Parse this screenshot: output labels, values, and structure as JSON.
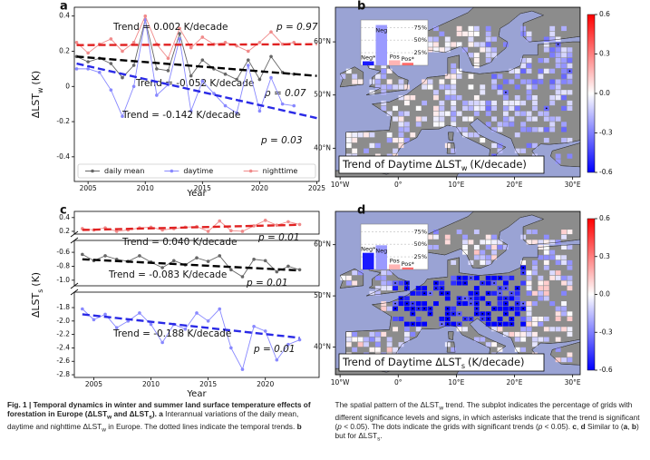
{
  "chart_data": [
    {
      "type": "line",
      "panel_label": "a",
      "xlabel": "Year",
      "ylabel": {
        "main": "ΔLST",
        "sub": "w",
        "unit": "(K)"
      },
      "xlim": [
        2003.8,
        2025.2
      ],
      "xticks": [
        2005,
        2010,
        2015,
        2020,
        2025
      ],
      "ylim": [
        -0.54,
        0.45
      ],
      "yticks": [
        -0.4,
        -0.2,
        0,
        0.2,
        0.4
      ],
      "legend": "lower center",
      "x": [
        2004,
        2005,
        2006,
        2007,
        2008,
        2009,
        2010,
        2011,
        2012,
        2013,
        2014,
        2015,
        2016,
        2017,
        2018,
        2019,
        2020,
        2021,
        2022,
        2023
      ],
      "series": [
        {
          "name": "daily mean",
          "color": "#666666",
          "trend_color": "#000000",
          "values": [
            0.17,
            0.14,
            0.16,
            0.13,
            0.05,
            0.12,
            0.38,
            0.1,
            0.09,
            0.3,
            0.06,
            0.15,
            0.1,
            0.07,
            0.04,
            0.15,
            0.04,
            0.17,
            0.08,
            0.07
          ],
          "trend": {
            "x": [
              2004,
              2025
            ],
            "values": [
              0.17,
              0.06
            ]
          },
          "trend_label": "Trend = -0.052 K/decade",
          "p_label": "p = 0.07"
        },
        {
          "name": "daytime",
          "color": "#8888ff",
          "trend_color": "#2a2ae6",
          "values": [
            0.1,
            0.1,
            0.08,
            -0.02,
            -0.17,
            0,
            0.38,
            -0.05,
            0.01,
            0.27,
            -0.14,
            0.03,
            -0.04,
            -0.11,
            -0.15,
            0.12,
            -0.14,
            0.05,
            -0.1,
            -0.11
          ],
          "trend": {
            "x": [
              2004,
              2025
            ],
            "values": [
              0.13,
              -0.18
            ]
          },
          "trend_label": "Trend = -0.142 K/decade",
          "p_label": "p = 0.03"
        },
        {
          "name": "nighttime",
          "color": "#f08a8a",
          "trend_color": "#e02222",
          "values": [
            0.25,
            0.19,
            0.24,
            0.27,
            0.2,
            0.25,
            0.4,
            0.24,
            0.16,
            0.33,
            0.22,
            0.28,
            0.24,
            0.25,
            0.23,
            0.2,
            0.25,
            0.31,
            0.24,
            0.25
          ],
          "trend": {
            "x": [
              2004,
              2025
            ],
            "values": [
              0.235,
              0.24
            ]
          },
          "trend_label": "Trend = 0.002 K/decade",
          "p_label": "p = 0.97"
        }
      ]
    },
    {
      "type": "map",
      "panel_label": "b",
      "xlim": [
        -10.8,
        31.3
      ],
      "ylim": [
        34.6,
        66.5
      ],
      "xticks": [
        {
          "value": -10,
          "label": "10°W"
        },
        {
          "value": 0,
          "label": "0°"
        },
        {
          "value": 10,
          "label": "10°E"
        },
        {
          "value": 20,
          "label": "20°E"
        },
        {
          "value": 30,
          "label": "30°E"
        }
      ],
      "yticks": [
        {
          "value": 40,
          "label": "40°N"
        },
        {
          "value": 50,
          "label": "50°N"
        },
        {
          "value": 60,
          "label": "60°N"
        }
      ],
      "map_title": {
        "main": "Trend of Daytime ΔLST",
        "sub": "w",
        "unit": "(K/decade)"
      },
      "colorbar": {
        "clim": [
          -0.6,
          0.6
        ],
        "ticks": [
          0.6,
          0.3,
          {
            "value": 0,
            "label": "0.0"
          },
          -0.3,
          -0.6
        ]
      },
      "inset": {
        "categories": [
          "Neg*",
          "Neg",
          "Pos",
          "Pos*"
        ],
        "values": [
          8,
          80,
          10,
          5
        ],
        "colors": [
          "#1a1aff",
          "#9a9aff",
          "#ffb4b4",
          "#ff6a6a"
        ],
        "ylim": [
          0,
          90
        ],
        "yticks": [
          {
            "value": 25,
            "label": "25%"
          },
          {
            "value": 50,
            "label": "50%"
          },
          {
            "value": 75,
            "label": "75%"
          }
        ]
      }
    },
    {
      "type": "line",
      "panel_label": "c",
      "xlabel": "Year",
      "ylabel": {
        "main": "ΔLST",
        "sub": "s",
        "unit": "(K)"
      },
      "xlim": [
        2003.3,
        2024.7
      ],
      "xticks": [
        2005,
        2010,
        2015,
        2020
      ],
      "y_segments": [
        {
          "ylim": [
            0.16,
            0.49
          ],
          "yticks": [
            0.2,
            0.4
          ]
        },
        {
          "ylim": [
            -1.08,
            -0.43
          ],
          "yticks": [
            -0.6,
            -0.8,
            {
              "value": -1,
              "label": "-1.0"
            }
          ]
        },
        {
          "ylim": [
            -2.84,
            -1.57
          ],
          "yticks": [
            -1.8,
            {
              "value": -2,
              "label": "-2.0"
            },
            -2.2,
            -2.4,
            -2.6,
            -2.8
          ]
        }
      ],
      "x": [
        2004,
        2005,
        2006,
        2007,
        2008,
        2009,
        2010,
        2011,
        2012,
        2013,
        2014,
        2015,
        2016,
        2017,
        2018,
        2019,
        2020,
        2021,
        2022,
        2023
      ],
      "series": [
        {
          "color": "#666666",
          "trend_color": "#000000",
          "segment": 1,
          "values": [
            -0.63,
            -0.72,
            -0.65,
            -0.7,
            -0.73,
            -0.65,
            -0.74,
            -0.82,
            -0.72,
            -0.78,
            -0.68,
            -0.73,
            -0.65,
            -0.85,
            -0.95,
            -0.7,
            -0.72,
            -0.88,
            -0.8,
            -0.85
          ],
          "trend": {
            "x": [
              2004,
              2023
            ],
            "values": [
              -0.7,
              -0.86
            ]
          },
          "trend_label": "Trend = -0.083 K/decade",
          "p_label": "p = 0.01"
        },
        {
          "color": "#8888ff",
          "trend_color": "#2a2ae6",
          "segment": 2,
          "values": [
            -1.82,
            -1.98,
            -1.9,
            -2.1,
            -2.0,
            -1.88,
            -2.05,
            -2.32,
            -2.05,
            -2.12,
            -1.88,
            -2.0,
            -1.82,
            -2.4,
            -2.72,
            -2.08,
            -2.15,
            -2.58,
            -2.35,
            -2.28
          ],
          "trend": {
            "x": [
              2004,
              2023
            ],
            "values": [
              -1.9,
              -2.25
            ]
          },
          "trend_label": "Trend = -0.188 K/decade",
          "p_label": "p = 0.01"
        },
        {
          "color": "#f08a8a",
          "trend_color": "#e02222",
          "segment": 0,
          "values": [
            0.24,
            0.22,
            0.25,
            0.2,
            0.22,
            0.25,
            0.26,
            0.22,
            0.24,
            0.26,
            0.27,
            0.2,
            0.35,
            0.21,
            0.2,
            0.28,
            0.36,
            0.29,
            0.34,
            0.3
          ],
          "trend": {
            "x": [
              2004,
              2023
            ],
            "values": [
              0.22,
              0.295
            ]
          },
          "trend_label": "Trend = 0.040 K/decade",
          "p_label": "p = 0.01"
        }
      ]
    },
    {
      "type": "map",
      "panel_label": "d",
      "xlim": [
        -10.8,
        31.3
      ],
      "ylim": [
        34.6,
        66.5
      ],
      "xticks": [
        {
          "value": -10,
          "label": "10°W"
        },
        {
          "value": 0,
          "label": "0°"
        },
        {
          "value": 10,
          "label": "10°E"
        },
        {
          "value": 20,
          "label": "20°E"
        },
        {
          "value": 30,
          "label": "30°E"
        }
      ],
      "yticks": [
        {
          "value": 40,
          "label": "40°N"
        },
        {
          "value": 50,
          "label": "50°N"
        },
        {
          "value": 60,
          "label": "60°N"
        }
      ],
      "map_title": {
        "main": "Trend of Daytime ΔLST",
        "sub": "s",
        "unit": "(K/decade)"
      },
      "colorbar": {
        "clim": [
          -0.6,
          0.6
        ],
        "ticks": [
          0.6,
          0.3,
          {
            "value": 0,
            "label": "0.0"
          },
          -0.3,
          -0.6
        ]
      },
      "inset": {
        "categories": [
          "Neg*",
          "Neg",
          "Pos",
          "Pos*"
        ],
        "values": [
          33,
          48,
          10,
          4
        ],
        "colors": [
          "#1a1aff",
          "#9a9aff",
          "#ffb4b4",
          "#ff6a6a"
        ],
        "ylim": [
          0,
          90
        ],
        "yticks": [
          {
            "value": 25,
            "label": "25%"
          },
          {
            "value": 50,
            "label": "50%"
          },
          {
            "value": 75,
            "label": "75%"
          }
        ]
      }
    }
  ],
  "caption": {
    "runs": [
      {
        "text": "Fig. 1 | Temporal dynamics in winter and summer land surface temperature effects of forestation in Europe (ΔLST",
        "style": "b"
      },
      {
        "text": "w",
        "style": "bsub"
      },
      {
        "text": " and ΔLST",
        "style": "b"
      },
      {
        "text": "s",
        "style": "bsub"
      },
      {
        "text": ").",
        "style": "b"
      },
      {
        "text": " a",
        "style": "b"
      },
      {
        "text": " Interannual variations of the daily mean, daytime and nighttime ΔLST",
        "style": "n"
      },
      {
        "text": "w",
        "style": "sub"
      },
      {
        "text": " in Europe. The dotted lines indicate the temporal trends. ",
        "style": "n"
      },
      {
        "text": "b",
        "style": "b"
      },
      {
        "text": " The spatial pattern of the ΔLST",
        "style": "n"
      },
      {
        "text": "w",
        "style": "sub"
      },
      {
        "text": " trend. The subplot indicates the percentage of grids with different significance levels and signs, in which asterisks indicate that the trend is significant (",
        "style": "n"
      },
      {
        "text": "p",
        "style": "i"
      },
      {
        "text": " < 0.05). The dots indicate the grids with significant trends (",
        "style": "n"
      },
      {
        "text": "p",
        "style": "i"
      },
      {
        "text": " < 0.05). ",
        "style": "n"
      },
      {
        "text": "c",
        "style": "b"
      },
      {
        "text": ", ",
        "style": "n"
      },
      {
        "text": "d",
        "style": "b"
      },
      {
        "text": " Similar to (",
        "style": "n"
      },
      {
        "text": "a",
        "style": "b"
      },
      {
        "text": ", ",
        "style": "n"
      },
      {
        "text": "b",
        "style": "b"
      },
      {
        "text": ") but for ΔLST",
        "style": "n"
      },
      {
        "text": "s",
        "style": "sub"
      },
      {
        "text": ".",
        "style": "n"
      }
    ]
  }
}
